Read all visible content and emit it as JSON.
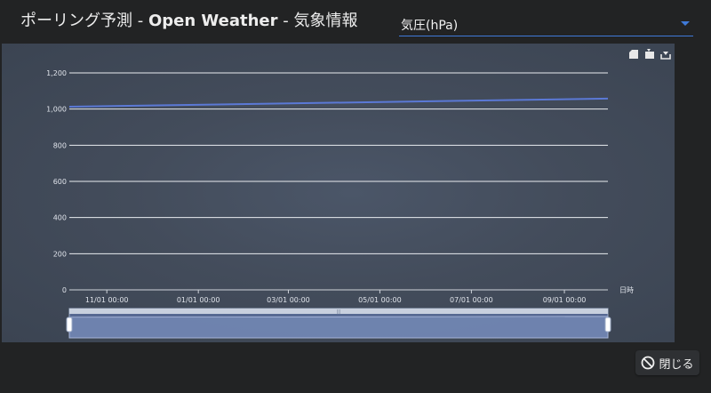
{
  "header": {
    "title_prefix": "ポーリング予測 - ",
    "title_source": "Open Weather",
    "title_suffix": " - 気象情報"
  },
  "metric_select": {
    "value": "気圧(hPa)"
  },
  "toolbox": {
    "icons": [
      "area-zoom-icon",
      "zoom-reset-icon",
      "save-image-icon"
    ]
  },
  "chart_data": {
    "type": "line",
    "xlabel": "日時",
    "x": [
      "2019-10-07 00:00",
      "2020-09-30 00:00"
    ],
    "x_ticks": [
      "11/01 00:00",
      "01/01 00:00",
      "03/01 00:00",
      "05/01 00:00",
      "07/01 00:00",
      "09/01 00:00"
    ],
    "y_ticks": [
      "0",
      "200",
      "400",
      "600",
      "800",
      "1,000",
      "1,200"
    ],
    "ylim": [
      0,
      1200
    ],
    "series": [
      {
        "values": [
          1013,
          1058
        ],
        "color": "#5b79d6"
      }
    ],
    "grid": true,
    "datazoom_slider": true
  },
  "footer": {
    "close_label": "閉じる"
  }
}
